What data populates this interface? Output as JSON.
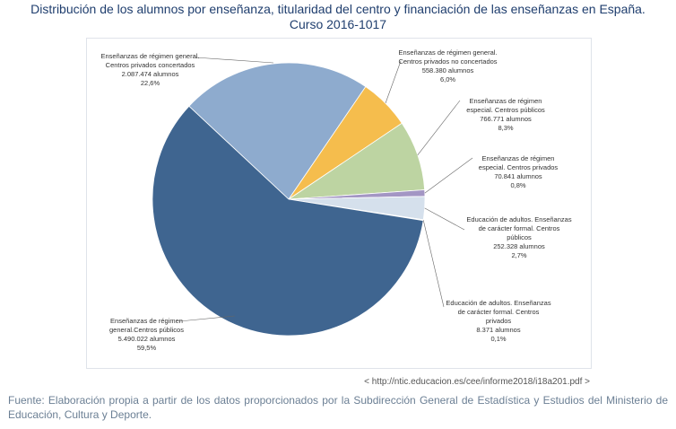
{
  "title": "Distribución de los alumnos por enseñanza, titularidad del centro y financiación de las enseñanzas en España.",
  "subtitle": "Curso 2016-1017",
  "source_url": "< http://ntic.educacion.es/cee/informe2018/i18a201.pdf >",
  "footer": "Fuente: Elaboración propia a partir de los datos proporcionados por la Subdirección General de Estadística y Estudios del Ministerio de Educación, Cultura y Deporte.",
  "chart_data": {
    "type": "pie",
    "title": "",
    "slices": [
      {
        "label": "Enseñanzas de régimen general. Centros privados concertados",
        "value": 2087474,
        "value_text": "2.087.474 alumnos",
        "percent": "22,6%",
        "color": "#8eabce"
      },
      {
        "label": "Enseñanzas de régimen general. Centros privados no concertados",
        "value": 558380,
        "value_text": "558.380 alumnos",
        "percent": "6,0%",
        "color": "#f5bd4d"
      },
      {
        "label": "Enseñanzas de régimen especial. Centros públicos",
        "value": 766771,
        "value_text": "766.771 alumnos",
        "percent": "8,3%",
        "color": "#bdd4a2"
      },
      {
        "label": "Enseñanzas de régimen especial. Centros privados",
        "value": 70841,
        "value_text": "70.841 alumnos",
        "percent": "0,8%",
        "color": "#a396c4"
      },
      {
        "label": "Educación de adultos. Enseñanzas de carácter formal. Centros públicos",
        "value": 252328,
        "value_text": "252.328 alumnos",
        "percent": "2,7%",
        "color": "#d5e0ec"
      },
      {
        "label": "Educación de adultos. Enseñanzas de carácter formal. Centros privados",
        "value": 8371,
        "value_text": "8.371 alumnos",
        "percent": "0,1%",
        "color": "#f7d9a8"
      },
      {
        "label": "Enseñanzas de régimen general.Centros públicos",
        "value": 5490022,
        "value_text": "5.490.022 alumnos",
        "percent": "59,5%",
        "color": "#3f6590"
      }
    ]
  }
}
